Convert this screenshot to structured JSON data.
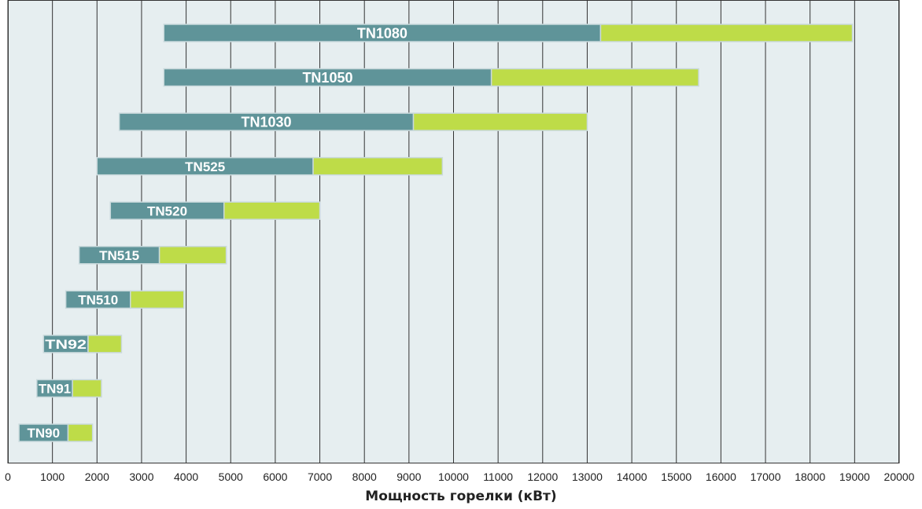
{
  "chart_data": {
    "type": "bar",
    "orientation": "horizontal",
    "subtitle": "(… … …)",
    "xlabel": "Мощность горелки (кВт)",
    "ylabel": "",
    "xlim": [
      0,
      20000
    ],
    "x_ticks": [
      0,
      1000,
      2000,
      3000,
      4000,
      5000,
      6000,
      7000,
      8000,
      9000,
      10000,
      11000,
      12000,
      13000,
      14000,
      15000,
      16000,
      17000,
      18000,
      19000,
      20000
    ],
    "grid": true,
    "colors": {
      "plot_background": "#e6eef0",
      "grid_line": "#333333",
      "segment_1": "#5f9499",
      "segment_2": "#bedc48",
      "bar_border": "#c9d9dc",
      "label_text": "#ffffff"
    },
    "categories": [
      "TN1080",
      "TN1050",
      "TN1030",
      "TN525",
      "TN520",
      "TN515",
      "TN510",
      "TN92",
      "TN91",
      "TN90"
    ],
    "bars": [
      {
        "name": "TN1080",
        "start": 3500,
        "mid": 13300,
        "end": 18950
      },
      {
        "name": "TN1050",
        "start": 3500,
        "mid": 10850,
        "end": 15500
      },
      {
        "name": "TN1030",
        "start": 2500,
        "mid": 9100,
        "end": 13000
      },
      {
        "name": "TN525",
        "start": 2000,
        "mid": 6850,
        "end": 9750
      },
      {
        "name": "TN520",
        "start": 2300,
        "mid": 4850,
        "end": 7000
      },
      {
        "name": "TN515",
        "start": 1600,
        "mid": 3400,
        "end": 4900
      },
      {
        "name": "TN510",
        "start": 1300,
        "mid": 2750,
        "end": 3950
      },
      {
        "name": "TN92",
        "start": 800,
        "mid": 1800,
        "end": 2550
      },
      {
        "name": "TN91",
        "start": 650,
        "mid": 1450,
        "end": 2100
      },
      {
        "name": "TN90",
        "start": 250,
        "mid": 1350,
        "end": 1900
      }
    ]
  }
}
